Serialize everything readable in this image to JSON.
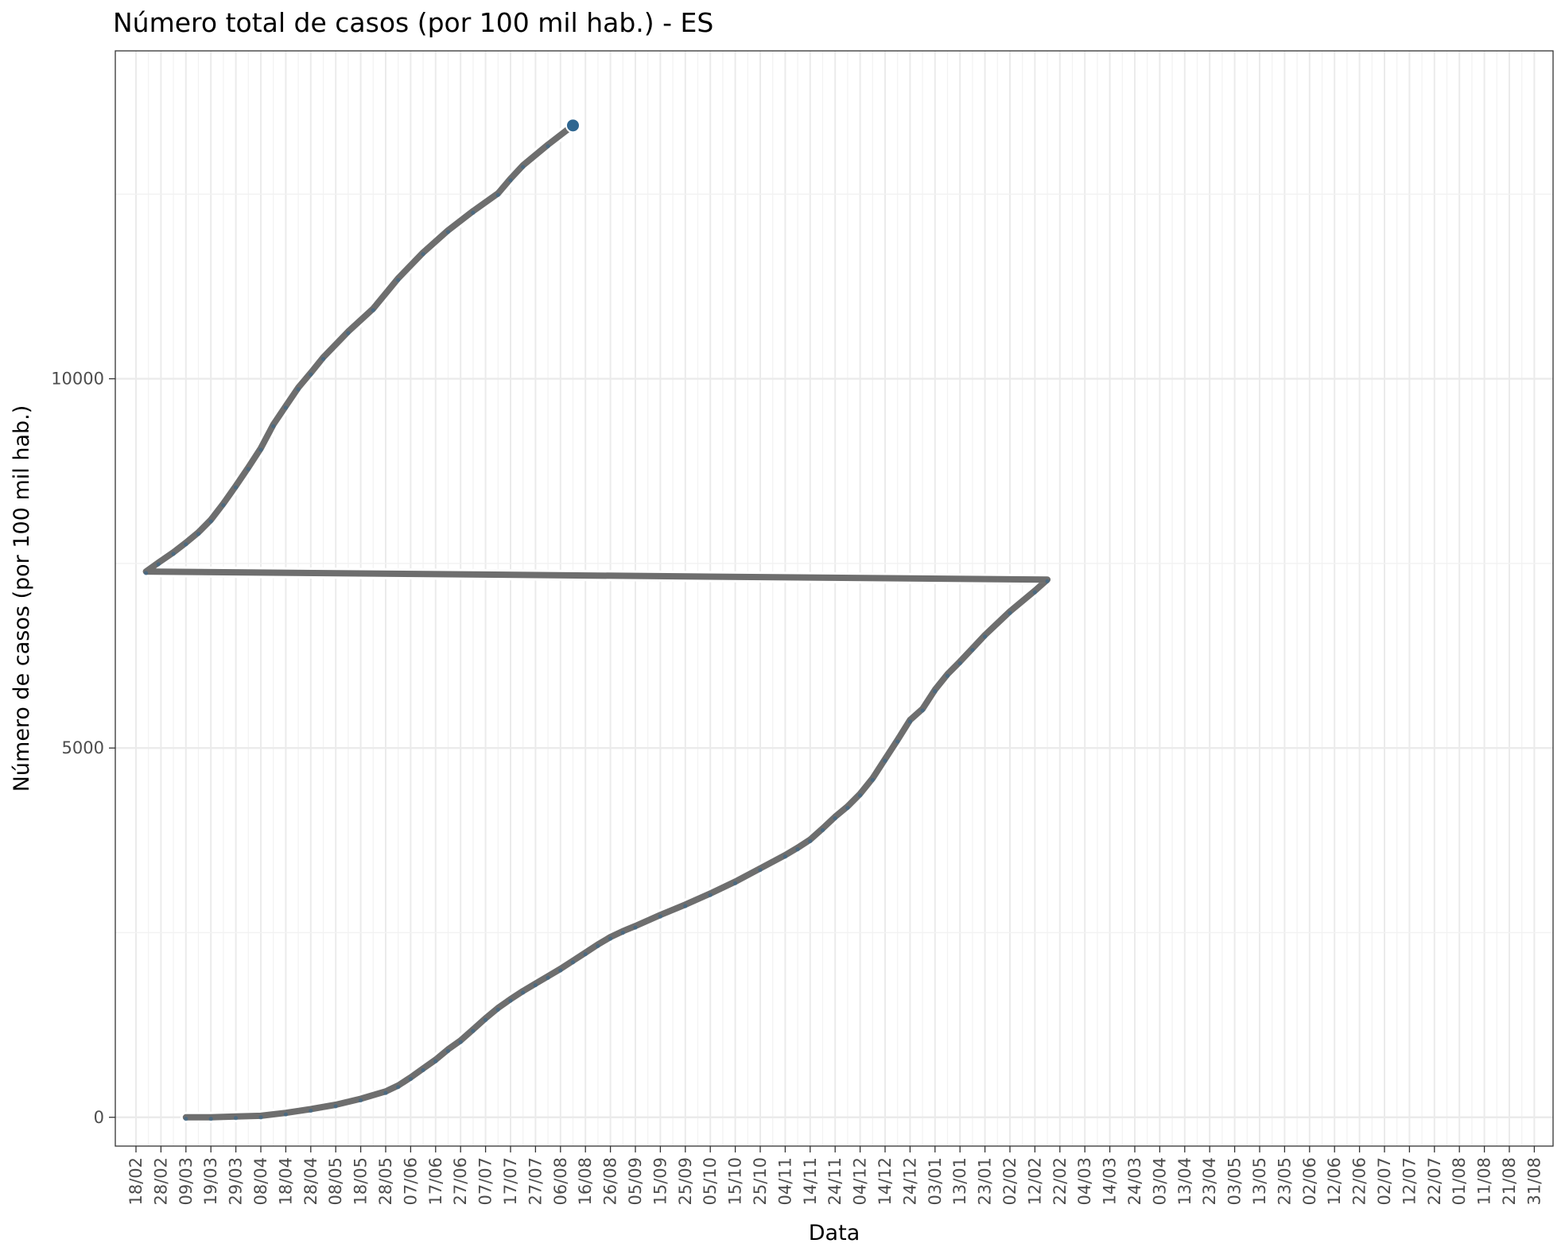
{
  "chart_data": {
    "type": "line",
    "title": "Número total de casos (por 100 mil hab.) - ES",
    "xlabel": "Data",
    "ylabel": "Número de casos (por 100 mil hab.)",
    "x_tick_labels": [
      "18/02",
      "28/02",
      "09/03",
      "19/03",
      "29/03",
      "08/04",
      "18/04",
      "28/04",
      "08/05",
      "18/05",
      "28/05",
      "07/06",
      "17/06",
      "27/06",
      "07/07",
      "17/07",
      "27/07",
      "06/08",
      "16/08",
      "26/08",
      "05/09",
      "15/09",
      "25/09",
      "05/10",
      "15/10",
      "25/10",
      "04/11",
      "14/11",
      "24/11",
      "04/12",
      "14/12",
      "24/12",
      "03/01",
      "13/01",
      "23/01",
      "02/02",
      "12/02",
      "22/02",
      "04/03",
      "14/03",
      "24/03",
      "03/04",
      "13/04",
      "23/04",
      "03/05",
      "13/05",
      "23/05",
      "02/06",
      "12/06",
      "22/06",
      "02/07",
      "12/07",
      "22/07",
      "01/08",
      "11/08",
      "21/08",
      "31/08"
    ],
    "y_ticks": [
      0,
      5000,
      10000
    ],
    "ylim": [
      -390,
      14440
    ],
    "grid": true,
    "series": [
      {
        "color": "#6e6e6e",
        "marker_color": "#2f6690",
        "x": [
          "09/03",
          "19/03",
          "29/03",
          "08/04",
          "18/04",
          "28/04",
          "08/05",
          "18/05",
          "28/05",
          "02/06",
          "07/06",
          "12/06",
          "17/06",
          "22/06",
          "27/06",
          "02/07",
          "07/07",
          "12/07",
          "17/07",
          "22/07",
          "27/07",
          "01/08",
          "06/08",
          "11/08",
          "16/08",
          "21/08",
          "26/08",
          "31/08",
          "05/09",
          "15/09",
          "25/09",
          "05/10",
          "15/10",
          "25/10",
          "04/11",
          "09/11",
          "14/11",
          "19/11",
          "24/11",
          "29/11",
          "04/12",
          "09/12",
          "14/12",
          "19/12",
          "24/12",
          "29/12",
          "03/01",
          "08/01",
          "13/01",
          "18/01",
          "23/01",
          "02/02",
          "12/02",
          "17/02",
          "22/02",
          "27/02",
          "04/03",
          "09/03",
          "14/03",
          "19/03",
          "24/03",
          "29/03",
          "03/04",
          "08/04",
          "13/04",
          "18/04",
          "23/04",
          "28/04",
          "03/05",
          "13/05",
          "23/05",
          "02/06",
          "12/06",
          "22/06",
          "02/07",
          "12/07",
          "17/07",
          "22/07",
          "01/08",
          "11/08"
        ],
        "y": [
          0,
          0,
          10,
          20,
          60,
          110,
          170,
          250,
          350,
          430,
          540,
          660,
          780,
          920,
          1040,
          1190,
          1340,
          1480,
          1600,
          1710,
          1810,
          1910,
          2010,
          2120,
          2230,
          2340,
          2440,
          2520,
          2590,
          2740,
          2880,
          3030,
          3190,
          3370,
          3550,
          3650,
          3760,
          3910,
          4070,
          4210,
          4380,
          4590,
          4850,
          5110,
          5380,
          5530,
          5790,
          6000,
          6170,
          6350,
          6530,
          6850,
          7130,
          7280,
          7390,
          7510,
          7650,
          7780,
          7920,
          8090,
          8310,
          8550,
          8800,
          9060,
          9380,
          9630,
          9880,
          10080,
          10290,
          10640,
          10950,
          11360,
          11710,
          12010,
          12270,
          12510,
          12710,
          12890,
          13170,
          13430
        ]
      }
    ]
  }
}
